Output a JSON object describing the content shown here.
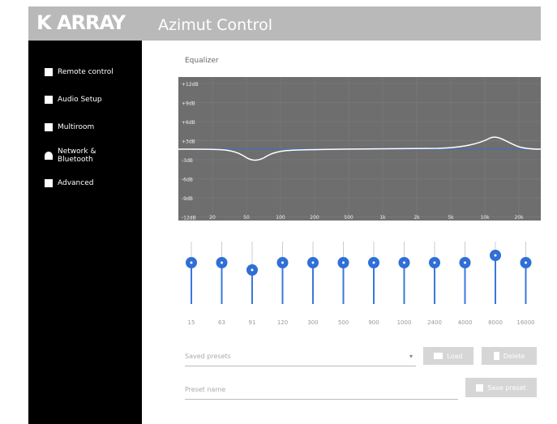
{
  "header": {
    "logo": "K ARRAY",
    "title": "Azimut Control"
  },
  "menu": [
    "Remote control",
    "Audio Setup",
    "Multiroom",
    "Network & Bluetooth",
    "Advanced"
  ],
  "equalizer": {
    "title": "Equalizer",
    "graph_y_labels": [
      "+12dB",
      "+9dB",
      "+6dB",
      "+3dB",
      "-3dB",
      "-6dB",
      "-9dB",
      "-12dB"
    ],
    "graph_x_labels": [
      "20",
      "50",
      "100",
      "200",
      "500",
      "1k",
      "2k",
      "5k",
      "10k",
      "20k"
    ],
    "bands": [
      {
        "label": "15",
        "gain": 0
      },
      {
        "label": "63",
        "gain": 0
      },
      {
        "label": "91",
        "gain": -3
      },
      {
        "label": "120",
        "gain": 0
      },
      {
        "label": "300",
        "gain": 0
      },
      {
        "label": "500",
        "gain": 0
      },
      {
        "label": "900",
        "gain": 0
      },
      {
        "label": "1000",
        "gain": 0
      },
      {
        "label": "2400",
        "gain": 0
      },
      {
        "label": "4000",
        "gain": 0
      },
      {
        "label": "8000",
        "gain": 3
      },
      {
        "label": "16000",
        "gain": 0
      }
    ]
  },
  "presets": {
    "select_placeholder": "Saved presets",
    "load": "Load",
    "delete": "Delete",
    "name_placeholder": "Preset name",
    "save": "Save preset"
  }
}
